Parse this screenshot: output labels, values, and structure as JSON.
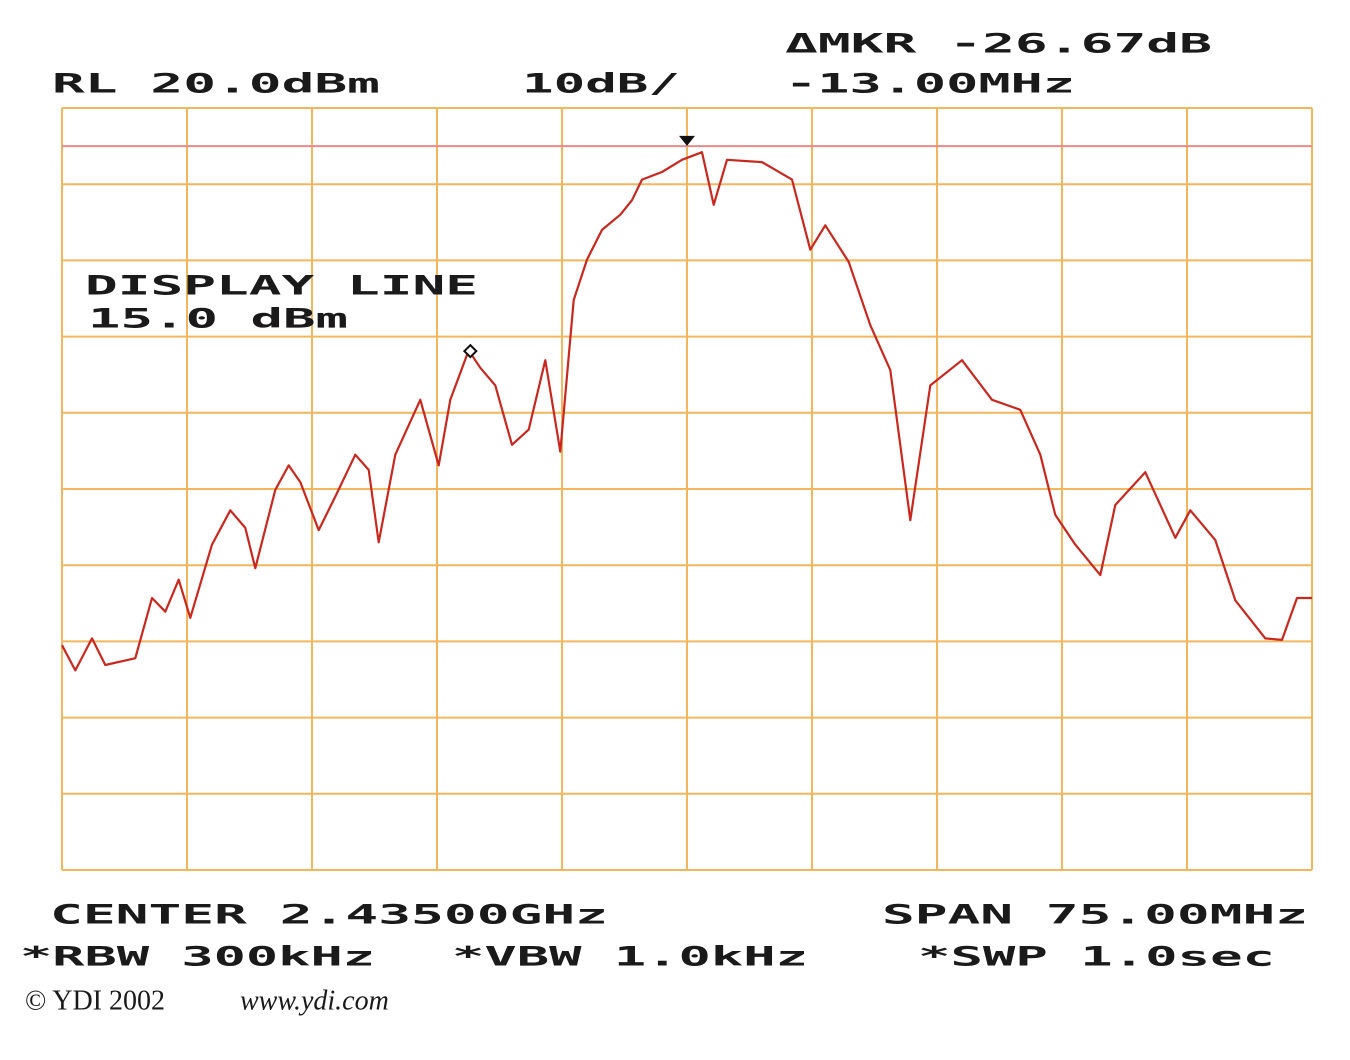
{
  "chart_data": {
    "type": "line",
    "labels": {
      "delta_marker": "ΔMKR -26.67dB",
      "ref_level": "RL 20.0dBm",
      "scale": "10dB/",
      "delta_freq": "-13.00MHz",
      "display_line_title": "DISPLAY LINE",
      "display_line_level": "15.0 dBm",
      "center": "CENTER 2.43500GHz",
      "span": "SPAN 75.00MHz",
      "rbw": "*RBW 300kHz",
      "vbw": "*VBW 1.0kHz",
      "sweep": "*SWP 1.0sec",
      "copyright": "© YDI 2002",
      "url": "www.ydi.com"
    },
    "x": [
      2397.5,
      2398.3,
      2399.3,
      2400.1,
      2401.9,
      2402.9,
      2403.7,
      2404.5,
      2405.2,
      2406.5,
      2407.6,
      2408.5,
      2409.1,
      2410.3,
      2411.1,
      2411.8,
      2412.9,
      2413.9,
      2415.1,
      2415.9,
      2416.5,
      2417.5,
      2419.0,
      2420.1,
      2420.8,
      2421.9,
      2422.6,
      2423.5,
      2424.5,
      2425.5,
      2426.5,
      2427.4,
      2428.2,
      2429.0,
      2429.9,
      2431.0,
      2431.7,
      2432.3,
      2433.5,
      2434.7,
      2435.9,
      2436.6,
      2437.4,
      2439.5,
      2441.3,
      2442.4,
      2443.3,
      2444.7,
      2446.0,
      2447.2,
      2448.4,
      2449.6,
      2451.5,
      2453.3,
      2455.0,
      2456.2,
      2457.1,
      2458.3,
      2459.8,
      2460.7,
      2462.5,
      2464.3,
      2465.2,
      2466.7,
      2467.9,
      2469.7,
      2470.7,
      2471.6,
      2472.5
    ],
    "series": [
      {
        "color": "#c8281e",
        "values": [
          -50.5,
          -53.8,
          -49.6,
          -53.1,
          -52.2,
          -44.3,
          -46.1,
          -41.9,
          -46.9,
          -37.3,
          -32.8,
          -35.1,
          -40.4,
          -30.1,
          -26.9,
          -29.1,
          -35.4,
          -31.0,
          -25.5,
          -27.5,
          -37.0,
          -25.5,
          -18.3,
          -26.9,
          -18.3,
          -11.8,
          -14.1,
          -16.4,
          -24.2,
          -22.2,
          -13.1,
          -25.1,
          -5.2,
          0.1,
          4.0,
          6.0,
          7.9,
          10.6,
          11.6,
          13.2,
          14.2,
          7.3,
          13.2,
          12.9,
          10.6,
          1.4,
          4.6,
          -0.2,
          -8.5,
          -14.4,
          -34.1,
          -16.4,
          -13.1,
          -18.3,
          -19.6,
          -25.5,
          -33.4,
          -37.3,
          -41.3,
          -32.1,
          -27.8,
          -36.4,
          -32.8,
          -36.7,
          -44.6,
          -49.6,
          -49.8,
          -44.3,
          -44.3
        ]
      }
    ],
    "markers": [
      {
        "x": 2435,
        "y": 14.5
      },
      {
        "x": 2422,
        "y": -12.17
      }
    ],
    "display_line": 15,
    "display_line_color": "#e88a8a",
    "grid_color": "#f2b65e",
    "xlim": [
      2397.5,
      2472.5
    ],
    "ylim": [
      -80,
      20
    ],
    "xticks": [
      2397.5,
      2405,
      2412.5,
      2420,
      2427.5,
      2435,
      2442.5,
      2450,
      2457.5,
      2465,
      2472.5
    ],
    "yticks": [
      -80,
      -70,
      -60,
      -50,
      -40,
      -30,
      -20,
      -10,
      0,
      10,
      20
    ],
    "grid": true
  }
}
